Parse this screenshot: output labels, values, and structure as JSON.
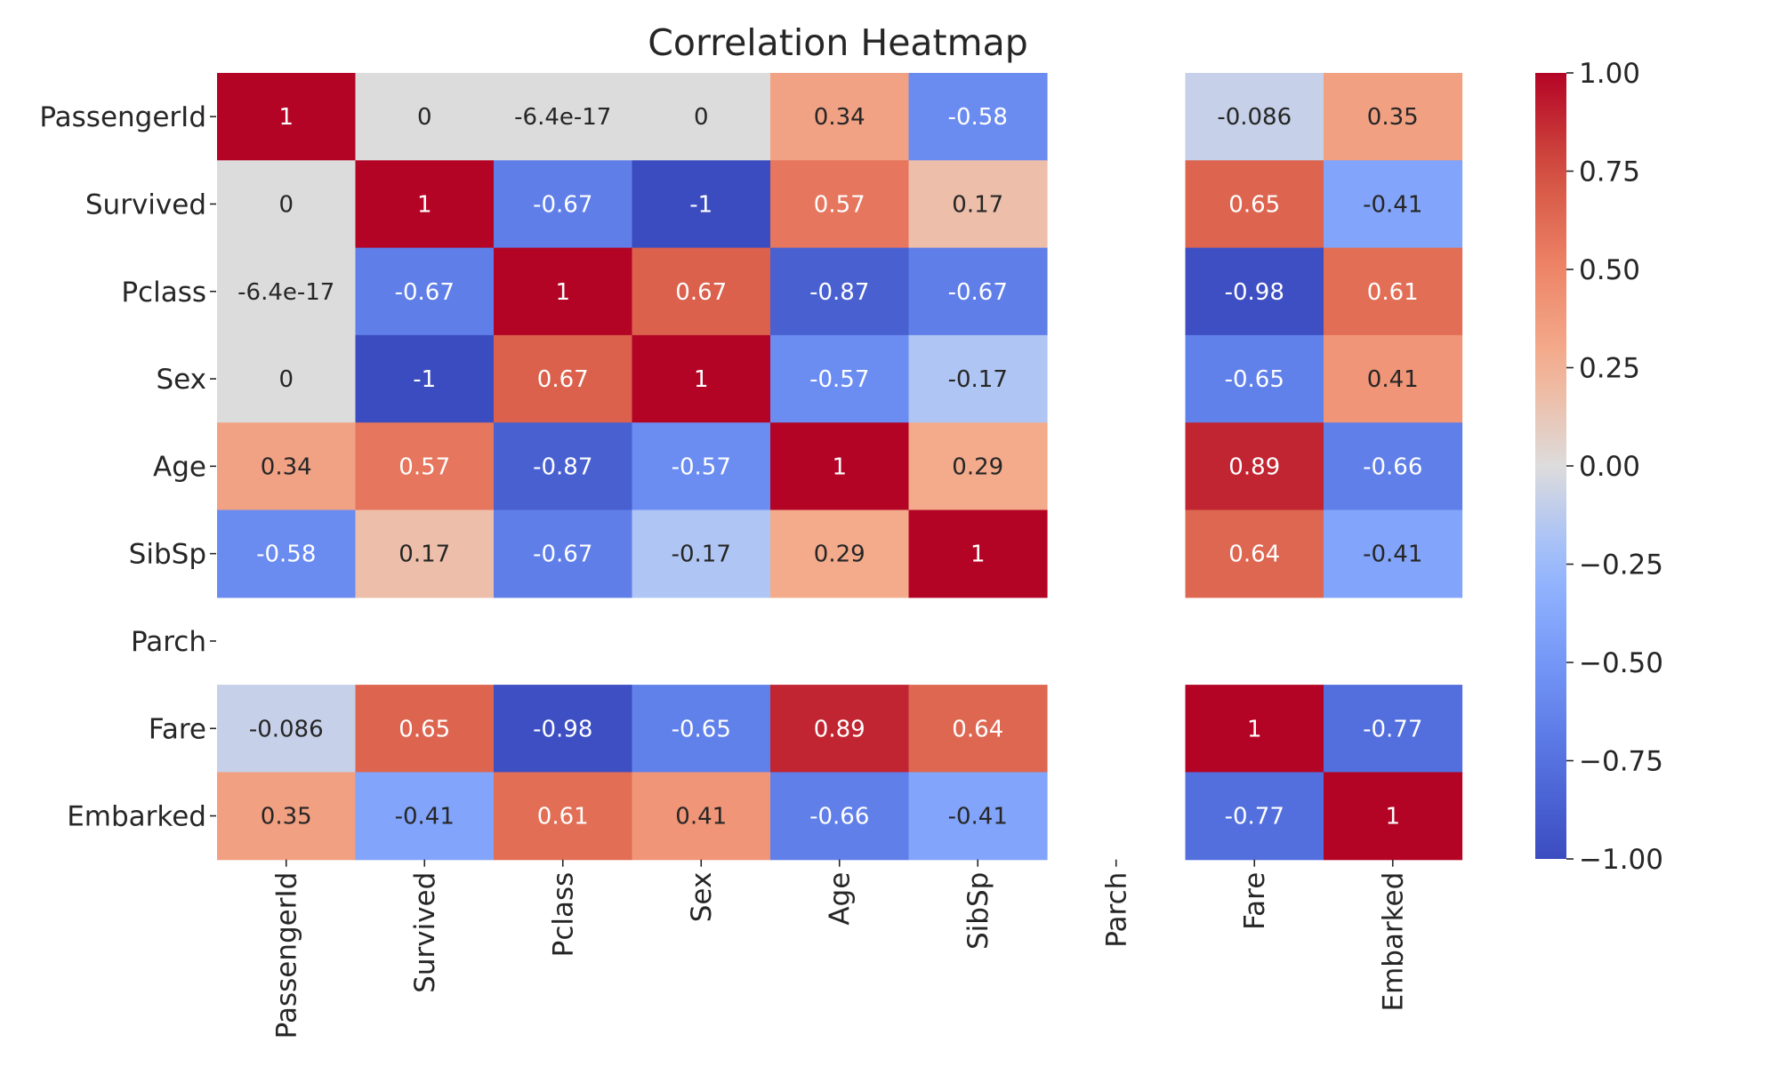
{
  "chart_data": {
    "type": "heatmap",
    "title": "Correlation Heatmap",
    "rows": [
      "PassengerId",
      "Survived",
      "Pclass",
      "Sex",
      "Age",
      "SibSp",
      "Parch",
      "Fare",
      "Embarked"
    ],
    "columns": [
      "PassengerId",
      "Survived",
      "Pclass",
      "Sex",
      "Age",
      "SibSp",
      "Parch",
      "Fare",
      "Embarked"
    ],
    "values": [
      [
        1,
        0,
        -6.4e-17,
        0,
        0.34,
        -0.58,
        null,
        -0.086,
        0.35
      ],
      [
        0,
        1,
        -0.67,
        -1,
        0.57,
        0.17,
        null,
        0.65,
        -0.41
      ],
      [
        -6.4e-17,
        -0.67,
        1,
        0.67,
        -0.87,
        -0.67,
        null,
        -0.98,
        0.61
      ],
      [
        0,
        -1,
        0.67,
        1,
        -0.57,
        -0.17,
        null,
        -0.65,
        0.41
      ],
      [
        0.34,
        0.57,
        -0.87,
        -0.57,
        1,
        0.29,
        null,
        0.89,
        -0.66
      ],
      [
        -0.58,
        0.17,
        -0.67,
        -0.17,
        0.29,
        1,
        null,
        0.64,
        -0.41
      ],
      [
        null,
        null,
        null,
        null,
        null,
        null,
        null,
        null,
        null
      ],
      [
        -0.086,
        0.65,
        -0.98,
        -0.65,
        0.89,
        0.64,
        null,
        1,
        -0.77
      ],
      [
        0.35,
        -0.41,
        0.61,
        0.41,
        -0.66,
        -0.41,
        null,
        -0.77,
        1
      ]
    ],
    "cell_labels": [
      [
        "1",
        "0",
        "-6.4e-17",
        "0",
        "0.34",
        "-0.58",
        "",
        "-0.086",
        "0.35"
      ],
      [
        "0",
        "1",
        "-0.67",
        "-1",
        "0.57",
        "0.17",
        "",
        "0.65",
        "-0.41"
      ],
      [
        "-6.4e-17",
        "-0.67",
        "1",
        "0.67",
        "-0.87",
        "-0.67",
        "",
        "-0.98",
        "0.61"
      ],
      [
        "0",
        "-1",
        "0.67",
        "1",
        "-0.57",
        "-0.17",
        "",
        "-0.65",
        "0.41"
      ],
      [
        "0.34",
        "0.57",
        "-0.87",
        "-0.57",
        "1",
        "0.29",
        "",
        "0.89",
        "-0.66"
      ],
      [
        "-0.58",
        "0.17",
        "-0.67",
        "-0.17",
        "0.29",
        "1",
        "",
        "0.64",
        "-0.41"
      ],
      [
        "",
        "",
        "",
        "",
        "",
        "",
        "",
        "",
        ""
      ],
      [
        "-0.086",
        "0.65",
        "-0.98",
        "-0.65",
        "0.89",
        "0.64",
        "",
        "1",
        "-0.77"
      ],
      [
        "0.35",
        "-0.41",
        "0.61",
        "0.41",
        "-0.66",
        "-0.41",
        "",
        "-0.77",
        "1"
      ]
    ],
    "colormap": "coolwarm",
    "vmin": -1,
    "vmax": 1,
    "colorbar": {
      "ticks": [
        1.0,
        0.75,
        0.5,
        0.25,
        0.0,
        -0.25,
        -0.5,
        -0.75,
        -1.0
      ],
      "tick_labels": [
        "1.00",
        "0.75",
        "0.50",
        "0.25",
        "0.00",
        "−0.25",
        "−0.50",
        "−0.75",
        "−1.00"
      ]
    },
    "colors": {
      "cold_end": "#3b4cc0",
      "neutral": "#dddcdc",
      "hot_end": "#b40426",
      "dark_text": "#262626",
      "light_text": "#ffffff"
    },
    "grid": false,
    "legend": "colorbar-right"
  }
}
